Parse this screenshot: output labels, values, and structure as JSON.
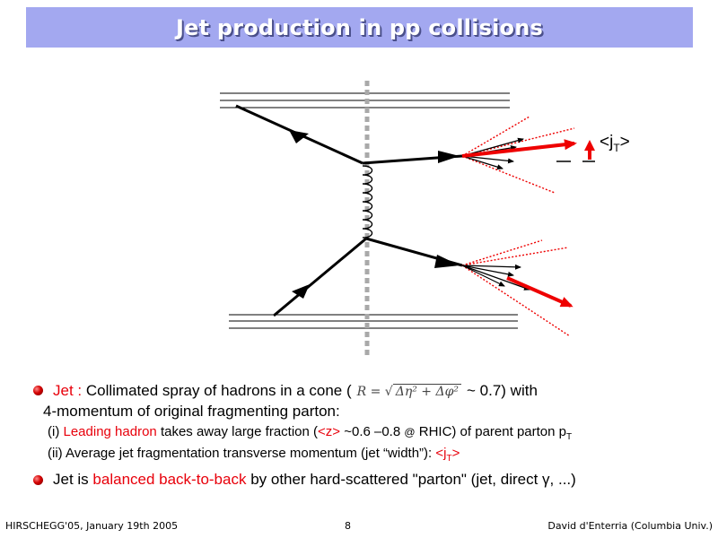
{
  "title": "Jet production in pp collisions",
  "diagram": {
    "jt_label": "<j",
    "jt_sub": "T",
    "jt_close": ">"
  },
  "bullet1": {
    "term": "Jet :",
    "text_before_formula": "Collimated spray of hadrons in a cone (",
    "formula_lhs": "R =",
    "formula_rhs": "Δη² + Δφ²",
    "text_after_formula": "~ 0.7) with",
    "line2": "4-momentum of original fragmenting parton:"
  },
  "item_i": {
    "prefix": "(i)",
    "highlight": "Leading hadron",
    "mid": "takes away large fraction (",
    "z": "<z>",
    "after_z": "~0.6 –0.8",
    "at": "@",
    "end": "RHIC) of parent parton p",
    "sub": "T"
  },
  "item_ii": {
    "text": "(ii) Average jet fragmentation transverse momentum (jet “width”):",
    "jt": "<j",
    "jt_sub": "T",
    "jt_close": ">"
  },
  "bullet2": {
    "before": "Jet is",
    "highlight": "balanced back-to-back",
    "after": "by other hard-scattered \"parton\" (jet, direct γ, ...)"
  },
  "footer": {
    "left": "HIRSCHEGG'05, January 19th 2005",
    "center": "8",
    "right": "David d'Enterria (Columbia Univ.)"
  },
  "colors": {
    "title_bg": "#a3a8f0",
    "title_text": "#ffffff",
    "highlight_red": "#e8000b",
    "arrow_red": "#ee0000",
    "dashed_grey": "#a9a9a9"
  }
}
